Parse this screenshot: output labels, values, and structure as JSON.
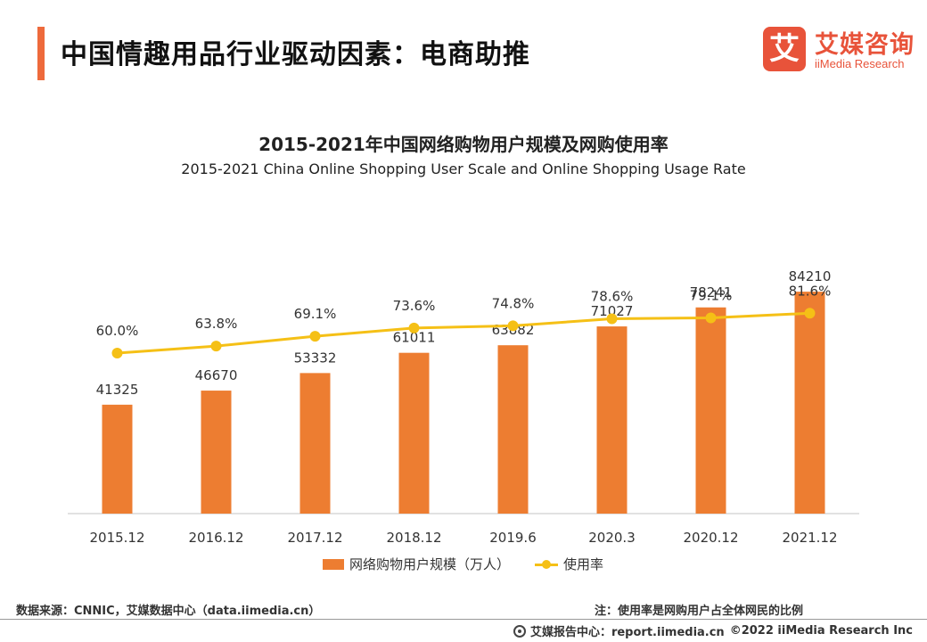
{
  "header": {
    "title": "中国情趣用品行业驱动因素：电商助推"
  },
  "logo": {
    "mark": "艾",
    "name_cn": "艾媒咨询",
    "name_en": "iiMedia Research"
  },
  "colors": {
    "accent": "#ee6a3c",
    "bar": "#ed7d31",
    "line": "#f5c016",
    "brand": "#e8533a"
  },
  "chart_data": {
    "type": "bar",
    "title": "2015-2021年中国网络购物用户规模及网购使用率",
    "subtitle": "2015-2021 China Online Shopping User Scale and Online Shopping Usage Rate",
    "categories": [
      "2015.12",
      "2016.12",
      "2017.12",
      "2018.12",
      "2019.6",
      "2020.3",
      "2020.12",
      "2021.12"
    ],
    "series": [
      {
        "name": "网络购物用户规模（万人）",
        "type": "bar",
        "values": [
          41325,
          46670,
          53332,
          61011,
          63882,
          71027,
          78241,
          84210
        ],
        "labels": [
          "41325",
          "46670",
          "53332",
          "61011",
          "63882",
          "71027",
          "78241",
          "84210"
        ]
      },
      {
        "name": "使用率",
        "type": "line",
        "values": [
          60.0,
          63.8,
          69.1,
          73.6,
          74.8,
          78.6,
          79.1,
          81.6
        ],
        "labels": [
          "60.0%",
          "63.8%",
          "69.1%",
          "73.6%",
          "74.8%",
          "78.6%",
          "79.1%",
          "81.6%"
        ]
      }
    ],
    "bar_axis_range": [
      0,
      90000
    ],
    "line_axis_range": [
      0,
      100
    ],
    "legend_position": "bottom",
    "grid": false
  },
  "footer": {
    "source": "数据来源：CNNIC，艾媒数据中心（data.iimedia.cn）",
    "note": "注：使用率是网购用户占全体网民的比例",
    "report_center": "艾媒报告中心：report.iimedia.cn",
    "copyright": "©2022  iiMedia Research  Inc"
  }
}
